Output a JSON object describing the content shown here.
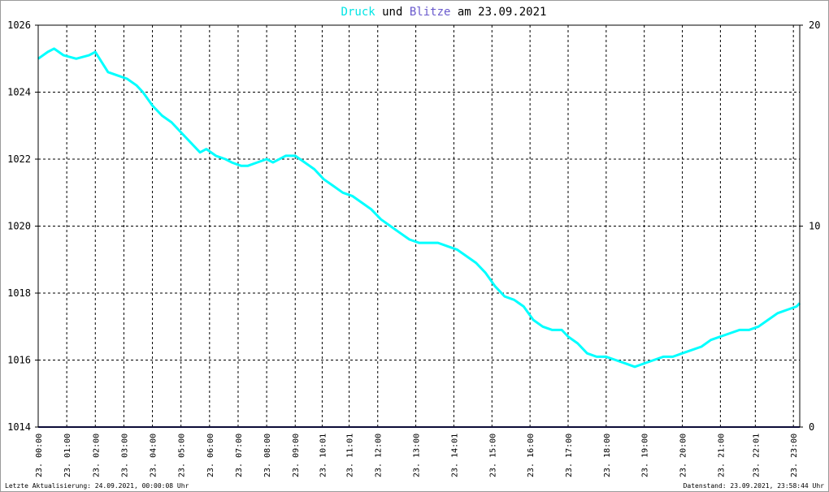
{
  "chart_data": {
    "type": "line",
    "title_parts": [
      {
        "text": "Druck",
        "color": "#00e5e5"
      },
      {
        "text": "und",
        "color": "#000000"
      },
      {
        "text": "Blitze",
        "color": "#6a5acd"
      },
      {
        "text": "am 23.09.2021",
        "color": "#000000"
      }
    ],
    "y_left": {
      "min": 1014,
      "max": 1026,
      "ticks": [
        "1014",
        "1016",
        "1018",
        "1020",
        "1022",
        "1024",
        "1026"
      ]
    },
    "y_right": {
      "min": 0,
      "max": 20,
      "ticks": [
        "0",
        "10",
        "20"
      ]
    },
    "x_range_hours": [
      0,
      24
    ],
    "x_ticks": [
      {
        "h": 0.0,
        "label": "23. 00:00"
      },
      {
        "h": 0.9,
        "label": "23. 01:00"
      },
      {
        "h": 1.8,
        "label": "23. 02:00"
      },
      {
        "h": 2.7,
        "label": "23. 03:00"
      },
      {
        "h": 3.6,
        "label": "23. 04:00"
      },
      {
        "h": 4.5,
        "label": "23. 05:00"
      },
      {
        "h": 5.4,
        "label": "23. 06:00"
      },
      {
        "h": 6.3,
        "label": "23. 07:00"
      },
      {
        "h": 7.2,
        "label": "23. 08:00"
      },
      {
        "h": 8.1,
        "label": "23. 09:00"
      },
      {
        "h": 8.95,
        "label": "23. 10:01"
      },
      {
        "h": 9.8,
        "label": "23. 11:01"
      },
      {
        "h": 10.7,
        "label": "23. 12:00"
      },
      {
        "h": 11.9,
        "label": "23. 13:00"
      },
      {
        "h": 13.1,
        "label": "23. 14:01"
      },
      {
        "h": 14.3,
        "label": "23. 15:00"
      },
      {
        "h": 15.5,
        "label": "23. 16:00"
      },
      {
        "h": 16.7,
        "label": "23. 17:00"
      },
      {
        "h": 17.9,
        "label": "23. 18:00"
      },
      {
        "h": 19.1,
        "label": "23. 19:00"
      },
      {
        "h": 20.3,
        "label": "23. 20:00"
      },
      {
        "h": 21.5,
        "label": "23. 21:00"
      },
      {
        "h": 22.6,
        "label": "23. 22:01"
      },
      {
        "h": 23.8,
        "label": "23. 23:00"
      }
    ],
    "series": [
      {
        "name": "Druck",
        "color": "#00ffff",
        "x": [
          0.0,
          0.3,
          0.5,
          0.8,
          1.2,
          1.6,
          1.8,
          2.0,
          2.2,
          2.5,
          2.8,
          3.1,
          3.3,
          3.6,
          3.9,
          4.2,
          4.5,
          4.8,
          5.1,
          5.3,
          5.6,
          5.9,
          6.1,
          6.4,
          6.6,
          6.9,
          7.2,
          7.4,
          7.8,
          8.1,
          8.4,
          8.7,
          9.0,
          9.3,
          9.6,
          9.9,
          10.2,
          10.5,
          10.8,
          11.1,
          11.4,
          11.7,
          12.0,
          12.3,
          12.6,
          12.9,
          13.2,
          13.5,
          13.8,
          14.1,
          14.4,
          14.7,
          15.0,
          15.3,
          15.6,
          15.9,
          16.2,
          16.5,
          16.7,
          17.0,
          17.3,
          17.6,
          17.9,
          18.2,
          18.5,
          18.8,
          19.1,
          19.4,
          19.7,
          20.0,
          20.3,
          20.6,
          20.9,
          21.2,
          21.5,
          21.8,
          22.1,
          22.4,
          22.7,
          23.0,
          23.3,
          23.6,
          23.9,
          24.0
        ],
        "y": [
          1025.0,
          1025.2,
          1025.3,
          1025.1,
          1025.0,
          1025.1,
          1025.2,
          1024.9,
          1024.6,
          1024.5,
          1024.4,
          1024.2,
          1024.0,
          1023.6,
          1023.3,
          1023.1,
          1022.8,
          1022.5,
          1022.2,
          1022.3,
          1022.1,
          1022.0,
          1021.9,
          1021.8,
          1021.8,
          1021.9,
          1022.0,
          1021.9,
          1022.1,
          1022.1,
          1021.9,
          1021.7,
          1021.4,
          1021.2,
          1021.0,
          1020.9,
          1020.7,
          1020.5,
          1020.2,
          1020.0,
          1019.8,
          1019.6,
          1019.5,
          1019.5,
          1019.5,
          1019.4,
          1019.3,
          1019.1,
          1018.9,
          1018.6,
          1018.2,
          1017.9,
          1017.8,
          1017.6,
          1017.2,
          1017.0,
          1016.9,
          1016.9,
          1016.7,
          1016.5,
          1016.2,
          1016.1,
          1016.1,
          1016.0,
          1015.9,
          1015.8,
          1015.9,
          1016.0,
          1016.1,
          1016.1,
          1016.2,
          1016.3,
          1016.4,
          1016.6,
          1016.7,
          1016.8,
          1016.9,
          1016.9,
          1017.0,
          1017.2,
          1017.4,
          1017.5,
          1017.6,
          1017.7
        ]
      },
      {
        "name": "Blitze",
        "color": "#191970",
        "x": [
          0,
          24
        ],
        "y": [
          0,
          0
        ]
      }
    ],
    "grid": true
  },
  "footer": {
    "left": "Letzte Aktualisierung: 24.09.2021, 00:00:08 Uhr",
    "right": "Datenstand: 23.09.2021, 23:58:44 Uhr"
  }
}
